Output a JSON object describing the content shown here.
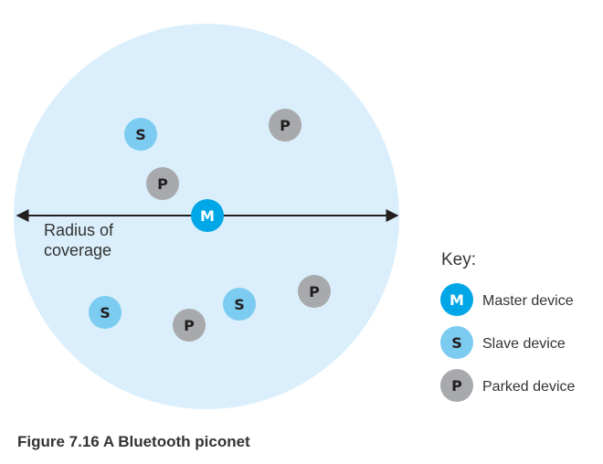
{
  "caption": "Figure 7.16 A Bluetooth piconet",
  "radius_label_line1": "Radius of",
  "radius_label_line2": "coverage",
  "key": {
    "title": "Key:",
    "items": [
      {
        "letter": "M",
        "label": "Master device",
        "type": "master"
      },
      {
        "letter": "S",
        "label": "Slave device",
        "type": "slave"
      },
      {
        "letter": "P",
        "label": "Parked device",
        "type": "parked"
      }
    ]
  },
  "nodes": [
    {
      "type": "slave",
      "letter": "S"
    },
    {
      "type": "parked",
      "letter": "P"
    },
    {
      "type": "parked",
      "letter": "P"
    },
    {
      "type": "master",
      "letter": "M"
    },
    {
      "type": "slave",
      "letter": "S"
    },
    {
      "type": "parked",
      "letter": "P"
    },
    {
      "type": "slave",
      "letter": "S"
    },
    {
      "type": "parked",
      "letter": "P"
    }
  ],
  "colors": {
    "coverage": "#daeffb",
    "master": "#00a7e6",
    "slave": "#7ccbf0",
    "parked": "#a7a9ac",
    "master_text": "#ffffff",
    "slave_text": "#231f20",
    "parked_text": "#231f20",
    "arrow": "#231f20"
  }
}
